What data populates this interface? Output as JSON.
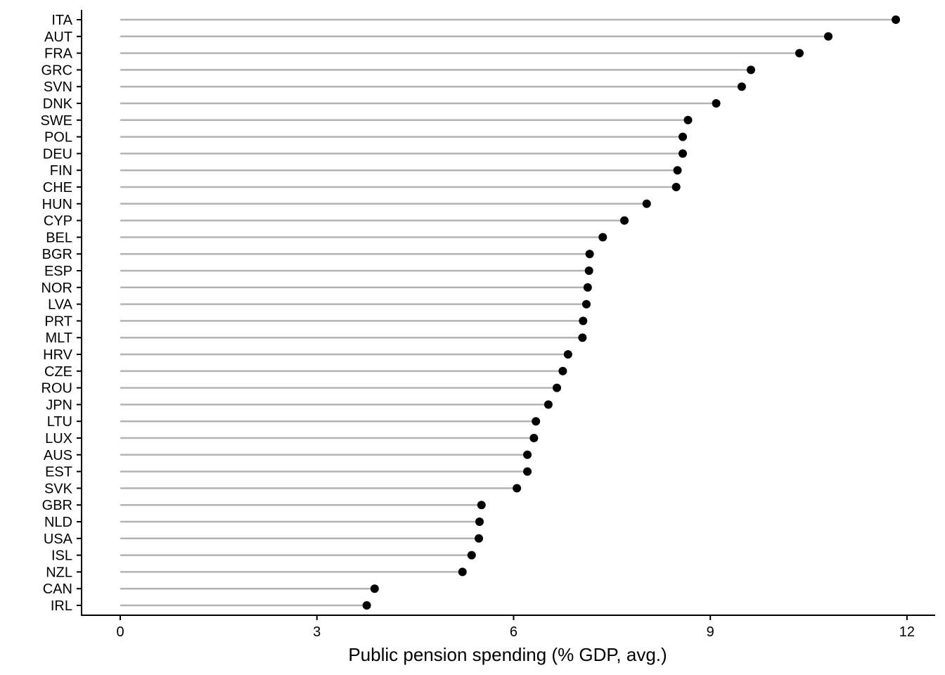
{
  "chart_data": {
    "type": "lollipop",
    "x_label": "Public pension spending (% GDP, avg.)",
    "categories": [
      "ITA",
      "AUT",
      "FRA",
      "GRC",
      "SVN",
      "DNK",
      "SWE",
      "POL",
      "DEU",
      "FIN",
      "CHE",
      "HUN",
      "CYP",
      "BEL",
      "BGR",
      "ESP",
      "NOR",
      "LVA",
      "PRT",
      "MLT",
      "HRV",
      "CZE",
      "ROU",
      "JPN",
      "LTU",
      "LUX",
      "AUS",
      "EST",
      "SVK",
      "GBR",
      "NLD",
      "USA",
      "ISL",
      "NZL",
      "CAN",
      "IRL"
    ],
    "values": [
      11.83,
      10.8,
      10.36,
      9.62,
      9.48,
      9.09,
      8.66,
      8.58,
      8.58,
      8.5,
      8.48,
      8.03,
      7.69,
      7.36,
      7.16,
      7.15,
      7.13,
      7.11,
      7.06,
      7.05,
      6.83,
      6.75,
      6.66,
      6.53,
      6.34,
      6.31,
      6.21,
      6.21,
      6.05,
      5.51,
      5.48,
      5.47,
      5.36,
      5.22,
      3.88,
      3.76
    ],
    "color": "#000000",
    "stem_color": "#b3b3b3",
    "xlim": [
      -0.59,
      12.43
    ],
    "xticks": [
      0,
      3,
      6,
      9,
      12
    ]
  }
}
